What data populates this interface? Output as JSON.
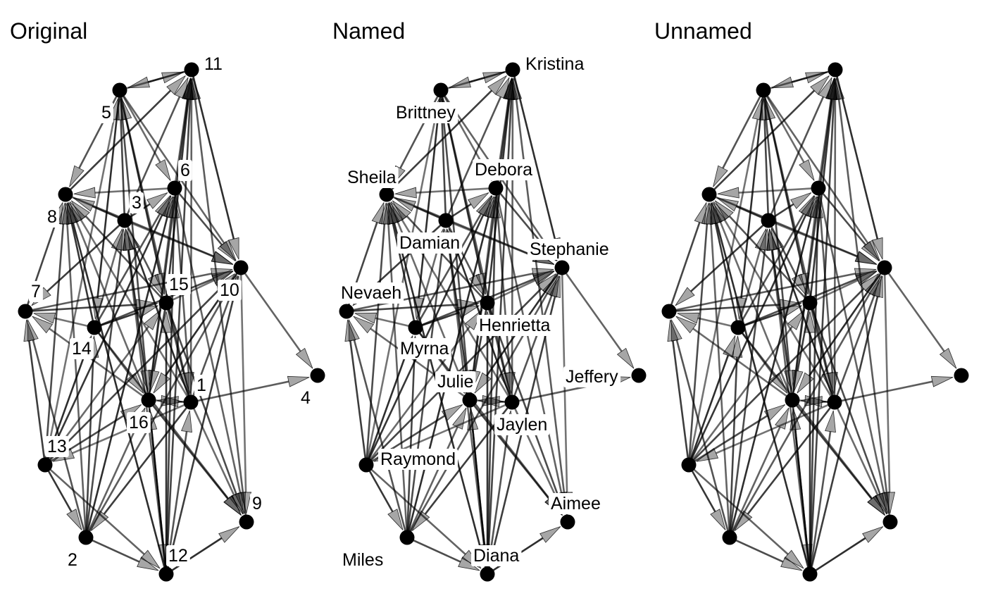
{
  "panels": [
    {
      "title": "Original",
      "nodes": [
        {
          "id": 1,
          "label": "1"
        },
        {
          "id": 2,
          "label": "2"
        },
        {
          "id": 3,
          "label": "3"
        },
        {
          "id": 4,
          "label": "4"
        },
        {
          "id": 5,
          "label": "5"
        },
        {
          "id": 6,
          "label": "6"
        },
        {
          "id": 7,
          "label": "7"
        },
        {
          "id": 8,
          "label": "8"
        },
        {
          "id": 9,
          "label": "9"
        },
        {
          "id": 10,
          "label": "10"
        },
        {
          "id": 11,
          "label": "11"
        },
        {
          "id": 12,
          "label": "12"
        },
        {
          "id": 13,
          "label": "13"
        },
        {
          "id": 14,
          "label": "14"
        },
        {
          "id": 15,
          "label": "15"
        },
        {
          "id": 16,
          "label": "16"
        }
      ]
    },
    {
      "title": "Named",
      "nodes": [
        {
          "id": 1,
          "label": "Jaylen"
        },
        {
          "id": 2,
          "label": "Miles"
        },
        {
          "id": 3,
          "label": "Damian"
        },
        {
          "id": 4,
          "label": "Jeffery"
        },
        {
          "id": 5,
          "label": "Brittney"
        },
        {
          "id": 6,
          "label": "Debora"
        },
        {
          "id": 7,
          "label": "Nevaeh"
        },
        {
          "id": 8,
          "label": "Sheila"
        },
        {
          "id": 9,
          "label": "Aimee"
        },
        {
          "id": 10,
          "label": "Stephanie"
        },
        {
          "id": 11,
          "label": "Kristina"
        },
        {
          "id": 12,
          "label": "Diana"
        },
        {
          "id": 13,
          "label": "Raymond"
        },
        {
          "id": 14,
          "label": "Myrna"
        },
        {
          "id": 15,
          "label": "Henrietta"
        },
        {
          "id": 16,
          "label": "Julie"
        }
      ]
    },
    {
      "title": "Unnamed",
      "nodes": [
        {
          "id": 1,
          "label": ""
        },
        {
          "id": 2,
          "label": ""
        },
        {
          "id": 3,
          "label": ""
        },
        {
          "id": 4,
          "label": ""
        },
        {
          "id": 5,
          "label": ""
        },
        {
          "id": 6,
          "label": ""
        },
        {
          "id": 7,
          "label": ""
        },
        {
          "id": 8,
          "label": ""
        },
        {
          "id": 9,
          "label": ""
        },
        {
          "id": 10,
          "label": ""
        },
        {
          "id": 11,
          "label": ""
        },
        {
          "id": 12,
          "label": ""
        },
        {
          "id": 13,
          "label": ""
        },
        {
          "id": 14,
          "label": ""
        },
        {
          "id": 15,
          "label": ""
        },
        {
          "id": 16,
          "label": ""
        }
      ]
    }
  ],
  "edges": [
    {
      "from": 5,
      "to": 11
    },
    {
      "from": 11,
      "to": 5
    },
    {
      "from": 5,
      "to": 8
    },
    {
      "from": 5,
      "to": 6
    },
    {
      "from": 5,
      "to": 15
    },
    {
      "from": 5,
      "to": 16
    },
    {
      "from": 5,
      "to": 10
    },
    {
      "from": 5,
      "to": 14
    },
    {
      "from": 3,
      "to": 5
    },
    {
      "from": 1,
      "to": 5
    },
    {
      "from": 13,
      "to": 5
    },
    {
      "from": 8,
      "to": 11
    },
    {
      "from": 3,
      "to": 11
    },
    {
      "from": 6,
      "to": 11
    },
    {
      "from": 15,
      "to": 11
    },
    {
      "from": 16,
      "to": 11
    },
    {
      "from": 1,
      "to": 11
    },
    {
      "from": 11,
      "to": 10
    },
    {
      "from": 12,
      "to": 11
    },
    {
      "from": 9,
      "to": 11
    },
    {
      "from": 6,
      "to": 8
    },
    {
      "from": 3,
      "to": 8
    },
    {
      "from": 15,
      "to": 8
    },
    {
      "from": 16,
      "to": 8
    },
    {
      "from": 14,
      "to": 8
    },
    {
      "from": 13,
      "to": 8
    },
    {
      "from": 2,
      "to": 8
    },
    {
      "from": 12,
      "to": 8
    },
    {
      "from": 7,
      "to": 8
    },
    {
      "from": 8,
      "to": 10
    },
    {
      "from": 1,
      "to": 8
    },
    {
      "from": 3,
      "to": 6
    },
    {
      "from": 14,
      "to": 6
    },
    {
      "from": 16,
      "to": 6
    },
    {
      "from": 13,
      "to": 6
    },
    {
      "from": 6,
      "to": 10
    },
    {
      "from": 6,
      "to": 9
    },
    {
      "from": 2,
      "to": 6
    },
    {
      "from": 12,
      "to": 6
    },
    {
      "from": 6,
      "to": 1
    },
    {
      "from": 3,
      "to": 10
    },
    {
      "from": 3,
      "to": 7
    },
    {
      "from": 3,
      "to": 15
    },
    {
      "from": 14,
      "to": 3
    },
    {
      "from": 16,
      "to": 3
    },
    {
      "from": 2,
      "to": 3
    },
    {
      "from": 12,
      "to": 3
    },
    {
      "from": 1,
      "to": 3
    },
    {
      "from": 7,
      "to": 15
    },
    {
      "from": 7,
      "to": 10
    },
    {
      "from": 14,
      "to": 7
    },
    {
      "from": 13,
      "to": 7
    },
    {
      "from": 2,
      "to": 7
    },
    {
      "from": 16,
      "to": 7
    },
    {
      "from": 14,
      "to": 15
    },
    {
      "from": 14,
      "to": 10
    },
    {
      "from": 14,
      "to": 16
    },
    {
      "from": 13,
      "to": 14
    },
    {
      "from": 2,
      "to": 14
    },
    {
      "from": 14,
      "to": 9
    },
    {
      "from": 15,
      "to": 10
    },
    {
      "from": 15,
      "to": 16
    },
    {
      "from": 15,
      "to": 1
    },
    {
      "from": 13,
      "to": 15
    },
    {
      "from": 12,
      "to": 15
    },
    {
      "from": 15,
      "to": 9
    },
    {
      "from": 10,
      "to": 4
    },
    {
      "from": 10,
      "to": 16
    },
    {
      "from": 13,
      "to": 10
    },
    {
      "from": 2,
      "to": 10
    },
    {
      "from": 10,
      "to": 9
    },
    {
      "from": 12,
      "to": 10
    },
    {
      "from": 1,
      "to": 10
    },
    {
      "from": 16,
      "to": 1
    },
    {
      "from": 1,
      "to": 16
    },
    {
      "from": 13,
      "to": 16
    },
    {
      "from": 2,
      "to": 16
    },
    {
      "from": 12,
      "to": 16
    },
    {
      "from": 16,
      "to": 9
    },
    {
      "from": 1,
      "to": 4
    },
    {
      "from": 1,
      "to": 13
    },
    {
      "from": 1,
      "to": 2
    },
    {
      "from": 12,
      "to": 1
    },
    {
      "from": 1,
      "to": 9
    },
    {
      "from": 13,
      "to": 2
    },
    {
      "from": 2,
      "to": 12
    },
    {
      "from": 13,
      "to": 12
    },
    {
      "from": 12,
      "to": 9
    },
    {
      "from": 16,
      "to": 12
    }
  ],
  "colors": {
    "node": "#000000",
    "edge": "#000000",
    "label_background": "#ffffff"
  }
}
